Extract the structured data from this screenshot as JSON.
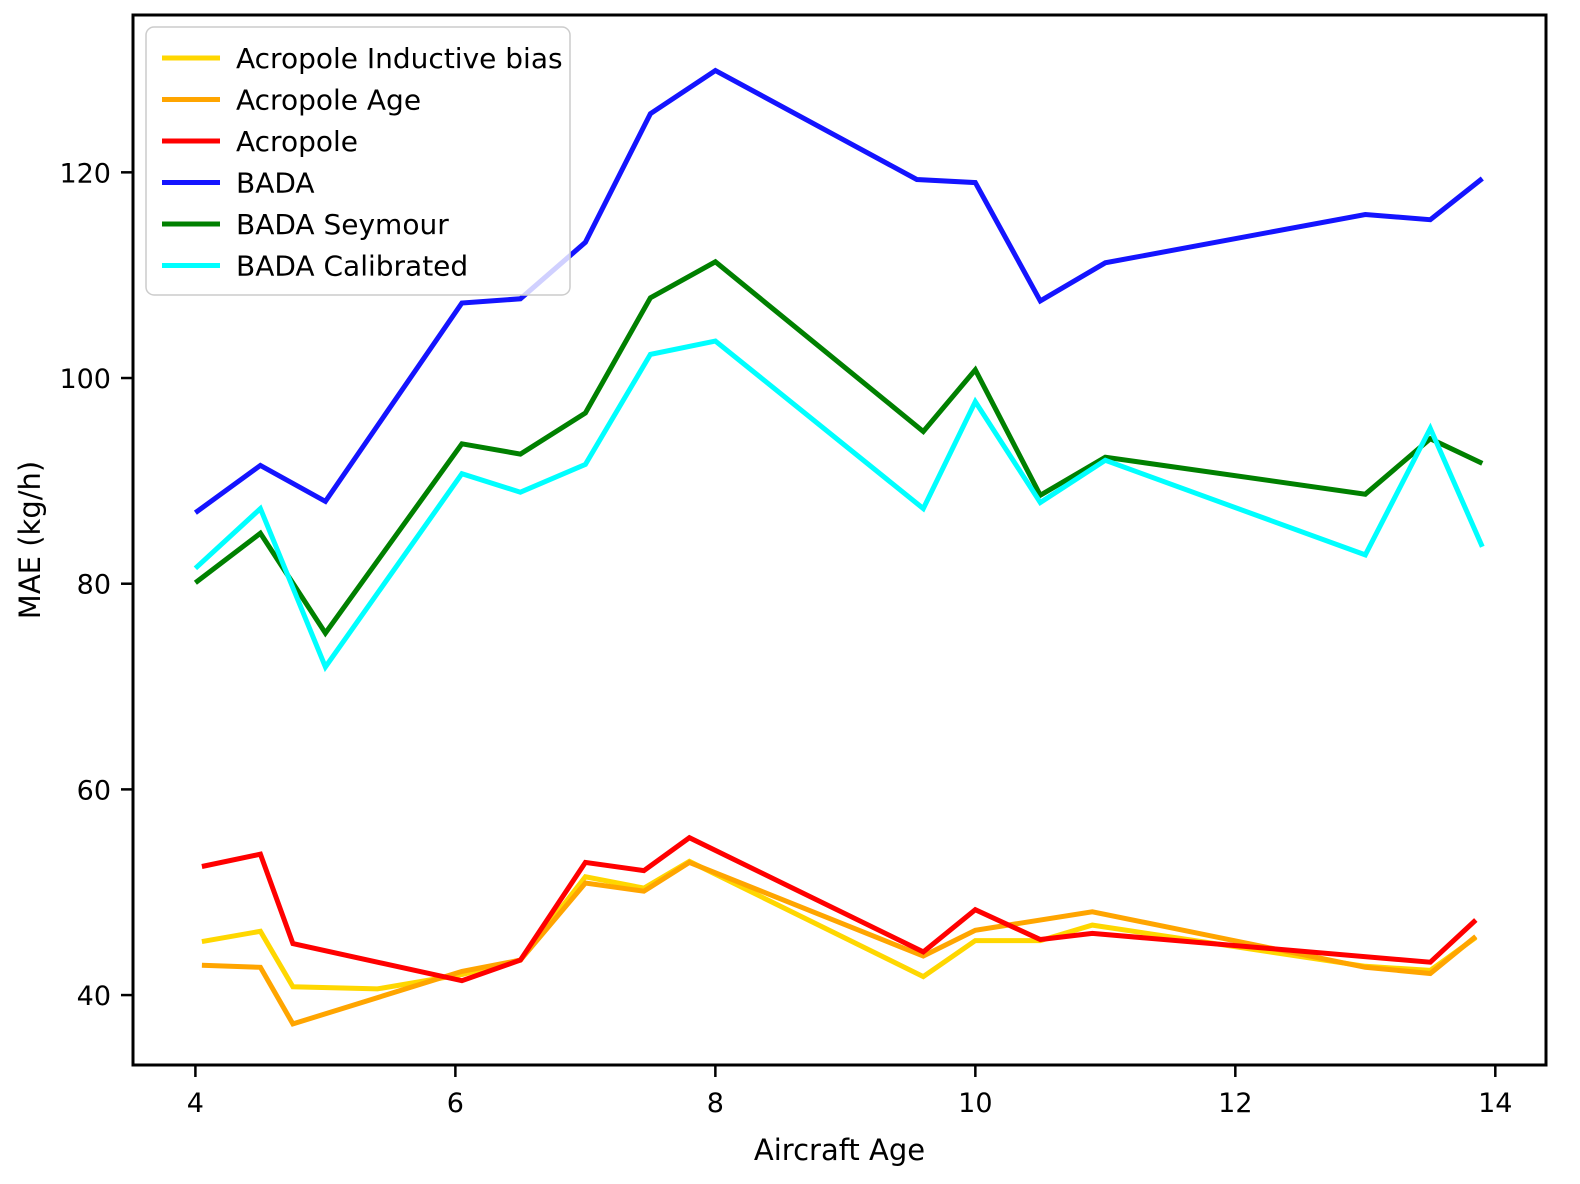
{
  "chart_data": {
    "type": "line",
    "title": "",
    "xlabel": "Aircraft Age",
    "ylabel": "MAE (kg/h)",
    "xlim": [
      3.52,
      14.39
    ],
    "ylim": [
      33.2,
      135.3
    ],
    "xticks": [
      4,
      6,
      8,
      10,
      12,
      14
    ],
    "yticks": [
      40,
      60,
      80,
      100,
      120
    ],
    "grid": false,
    "legend_position": "upper-left",
    "legend_bg": "rgba(255,255,255,0.8)",
    "legend_border": "#cccccc",
    "axis_color": "#000000",
    "series": [
      {
        "name": "Acropole Inductive bias",
        "color": "#FFD700",
        "x": [
          4.05,
          4.5,
          4.75,
          5.4,
          6.05,
          6.5,
          7.0,
          7.45,
          7.8,
          9.6,
          10.0,
          10.5,
          10.9,
          13.0,
          13.5,
          13.85
        ],
        "y": [
          45.2,
          46.2,
          40.8,
          40.6,
          42.0,
          43.4,
          51.5,
          50.4,
          53.0,
          41.8,
          45.3,
          45.3,
          46.8,
          42.8,
          42.4,
          45.6
        ]
      },
      {
        "name": "Acropole Age",
        "color": "#FFA500",
        "x": [
          4.05,
          4.5,
          4.75,
          6.05,
          6.5,
          7.0,
          7.45,
          7.8,
          9.6,
          10.0,
          10.9,
          13.0,
          13.5,
          13.85
        ],
        "y": [
          42.9,
          42.7,
          37.2,
          42.3,
          43.4,
          50.9,
          50.1,
          52.9,
          43.8,
          46.3,
          48.1,
          42.7,
          42.1,
          45.7
        ]
      },
      {
        "name": "Acropole",
        "color": "#FF0000",
        "x": [
          4.05,
          4.5,
          4.75,
          6.05,
          6.5,
          7.0,
          7.45,
          7.8,
          9.6,
          10.0,
          10.5,
          10.9,
          13.5,
          13.85
        ],
        "y": [
          52.5,
          53.7,
          45.0,
          41.4,
          43.4,
          52.9,
          52.1,
          55.3,
          44.2,
          48.3,
          45.4,
          46.0,
          43.2,
          47.3
        ]
      },
      {
        "name": "BADA",
        "color": "#1414FF",
        "x": [
          4.0,
          4.5,
          5.0,
          6.05,
          6.5,
          7.0,
          7.5,
          8.0,
          9.55,
          10.0,
          10.5,
          11.0,
          13.0,
          13.5,
          13.9
        ],
        "y": [
          86.9,
          91.5,
          88.0,
          107.3,
          107.7,
          113.2,
          125.7,
          129.9,
          119.3,
          119.0,
          107.5,
          111.2,
          115.9,
          115.4,
          119.4
        ]
      },
      {
        "name": "BADA Seymour",
        "color": "#008000",
        "x": [
          4.0,
          4.5,
          5.0,
          6.05,
          6.5,
          7.0,
          7.5,
          8.0,
          9.6,
          10.0,
          10.5,
          11.0,
          13.0,
          13.5,
          13.9
        ],
        "y": [
          80.1,
          84.9,
          75.2,
          93.6,
          92.6,
          96.6,
          107.8,
          111.3,
          94.8,
          100.8,
          88.6,
          92.3,
          88.7,
          94.1,
          91.7
        ]
      },
      {
        "name": "BADA Calibrated",
        "color": "#00FFFF",
        "x": [
          4.0,
          4.5,
          5.0,
          6.05,
          6.5,
          7.0,
          7.5,
          8.0,
          9.6,
          10.0,
          10.5,
          11.0,
          13.0,
          13.5,
          13.9
        ],
        "y": [
          81.5,
          87.3,
          71.9,
          90.7,
          88.9,
          91.6,
          102.3,
          103.6,
          87.3,
          97.7,
          87.9,
          92.0,
          82.8,
          95.1,
          83.6
        ]
      }
    ]
  }
}
